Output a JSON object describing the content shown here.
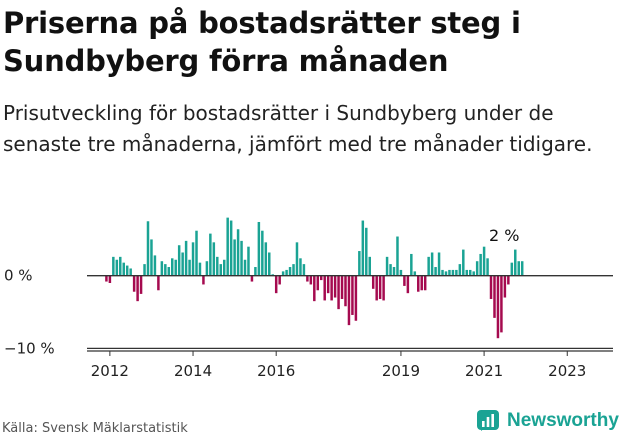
{
  "title": "Priserna på bostadsrätter steg i Sundbyberg förra månaden",
  "subtitle": "Prisutveckling för bostadsrätter i Sundbyberg under de senaste tre månaderna, jämfört med tre månader tidigare.",
  "source": "Källa: Svensk Mäklarstatistik",
  "brand": "Newsworthy",
  "colors": {
    "positive": "#1aa394",
    "negative": "#a50a4f",
    "axis": "#333333"
  },
  "chart_data": {
    "type": "bar",
    "x_start": 2011.917,
    "x_step": 0.08333,
    "xlim": [
      2011.45,
      2024.1
    ],
    "ylim": [
      -10.5,
      8.5
    ],
    "ylabel": "",
    "xlabel": "",
    "y_ticks": [
      0,
      -10
    ],
    "y_tick_labels": [
      "0 %",
      "−10 %"
    ],
    "x_ticks": [
      2012,
      2014,
      2016,
      2019,
      2021,
      2023
    ],
    "x_tick_labels": [
      "2012",
      "2014",
      "2016",
      "2019",
      "2021",
      "2023"
    ],
    "annotation": {
      "label": "2 %",
      "value": 2
    },
    "values": [
      -0.8,
      -1.0,
      2.6,
      2.2,
      2.6,
      1.8,
      1.4,
      1.0,
      -2.2,
      -3.5,
      -2.5,
      1.6,
      7.5,
      5.0,
      2.8,
      -2.0,
      2.0,
      1.6,
      1.2,
      2.4,
      2.2,
      4.2,
      3.2,
      4.8,
      2.2,
      4.6,
      6.2,
      1.8,
      -1.2,
      2.0,
      5.8,
      4.6,
      2.6,
      1.6,
      2.2,
      8.0,
      7.6,
      5.0,
      6.4,
      4.8,
      2.2,
      4.0,
      -0.8,
      1.2,
      7.4,
      6.2,
      4.6,
      3.2,
      0.2,
      -2.4,
      -1.2,
      0.6,
      0.8,
      1.2,
      1.6,
      4.6,
      2.4,
      1.6,
      -0.8,
      -1.2,
      -3.5,
      -2.0,
      -0.6,
      -3.4,
      -2.4,
      -3.4,
      -3.0,
      -4.6,
      -3.2,
      -4.2,
      -6.8,
      -5.4,
      -6.2,
      3.4,
      7.6,
      6.6,
      2.6,
      -1.8,
      -3.4,
      -3.2,
      -3.4,
      2.6,
      1.6,
      1.2,
      5.4,
      0.8,
      -1.4,
      -2.4,
      3.0,
      0.6,
      -2.2,
      -2.0,
      -2.0,
      2.6,
      3.2,
      1.2,
      3.2,
      0.8,
      0.6,
      0.8,
      0.8,
      0.8,
      1.6,
      3.6,
      0.8,
      0.8,
      0.6,
      2.0,
      3.0,
      4.0,
      2.4,
      -3.2,
      -5.8,
      -8.6,
      -7.8,
      -3.0,
      -1.2,
      1.8,
      3.6,
      2.0,
      2.0
    ]
  }
}
